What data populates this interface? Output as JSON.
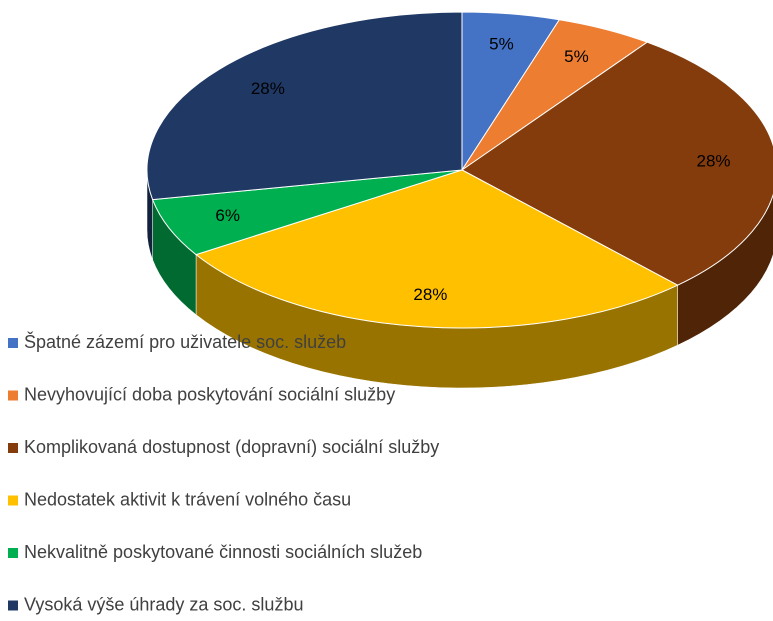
{
  "chart_data": {
    "type": "pie",
    "categories": [
      "Špatné zázemí pro uživatele soc. služeb",
      "Nevyhovující doba poskytování sociální služby",
      "Komplikovaná dostupnost (dopravní) sociální služby",
      "Nedostatek aktivit k trávení volného času",
      "Nekvalitně poskytované činnosti sociálních služeb",
      "Vysoká výše úhrady za soc. službu"
    ],
    "values": [
      5,
      5,
      28,
      28,
      6,
      28
    ],
    "value_labels": [
      "5%",
      "5%",
      "28%",
      "28%",
      "6%",
      "28%"
    ],
    "colors": [
      "#4472c4",
      "#ed7d31",
      "#843c0c",
      "#ffc000",
      "#00b050",
      "#1f3864"
    ],
    "legend": "bottom-left"
  }
}
